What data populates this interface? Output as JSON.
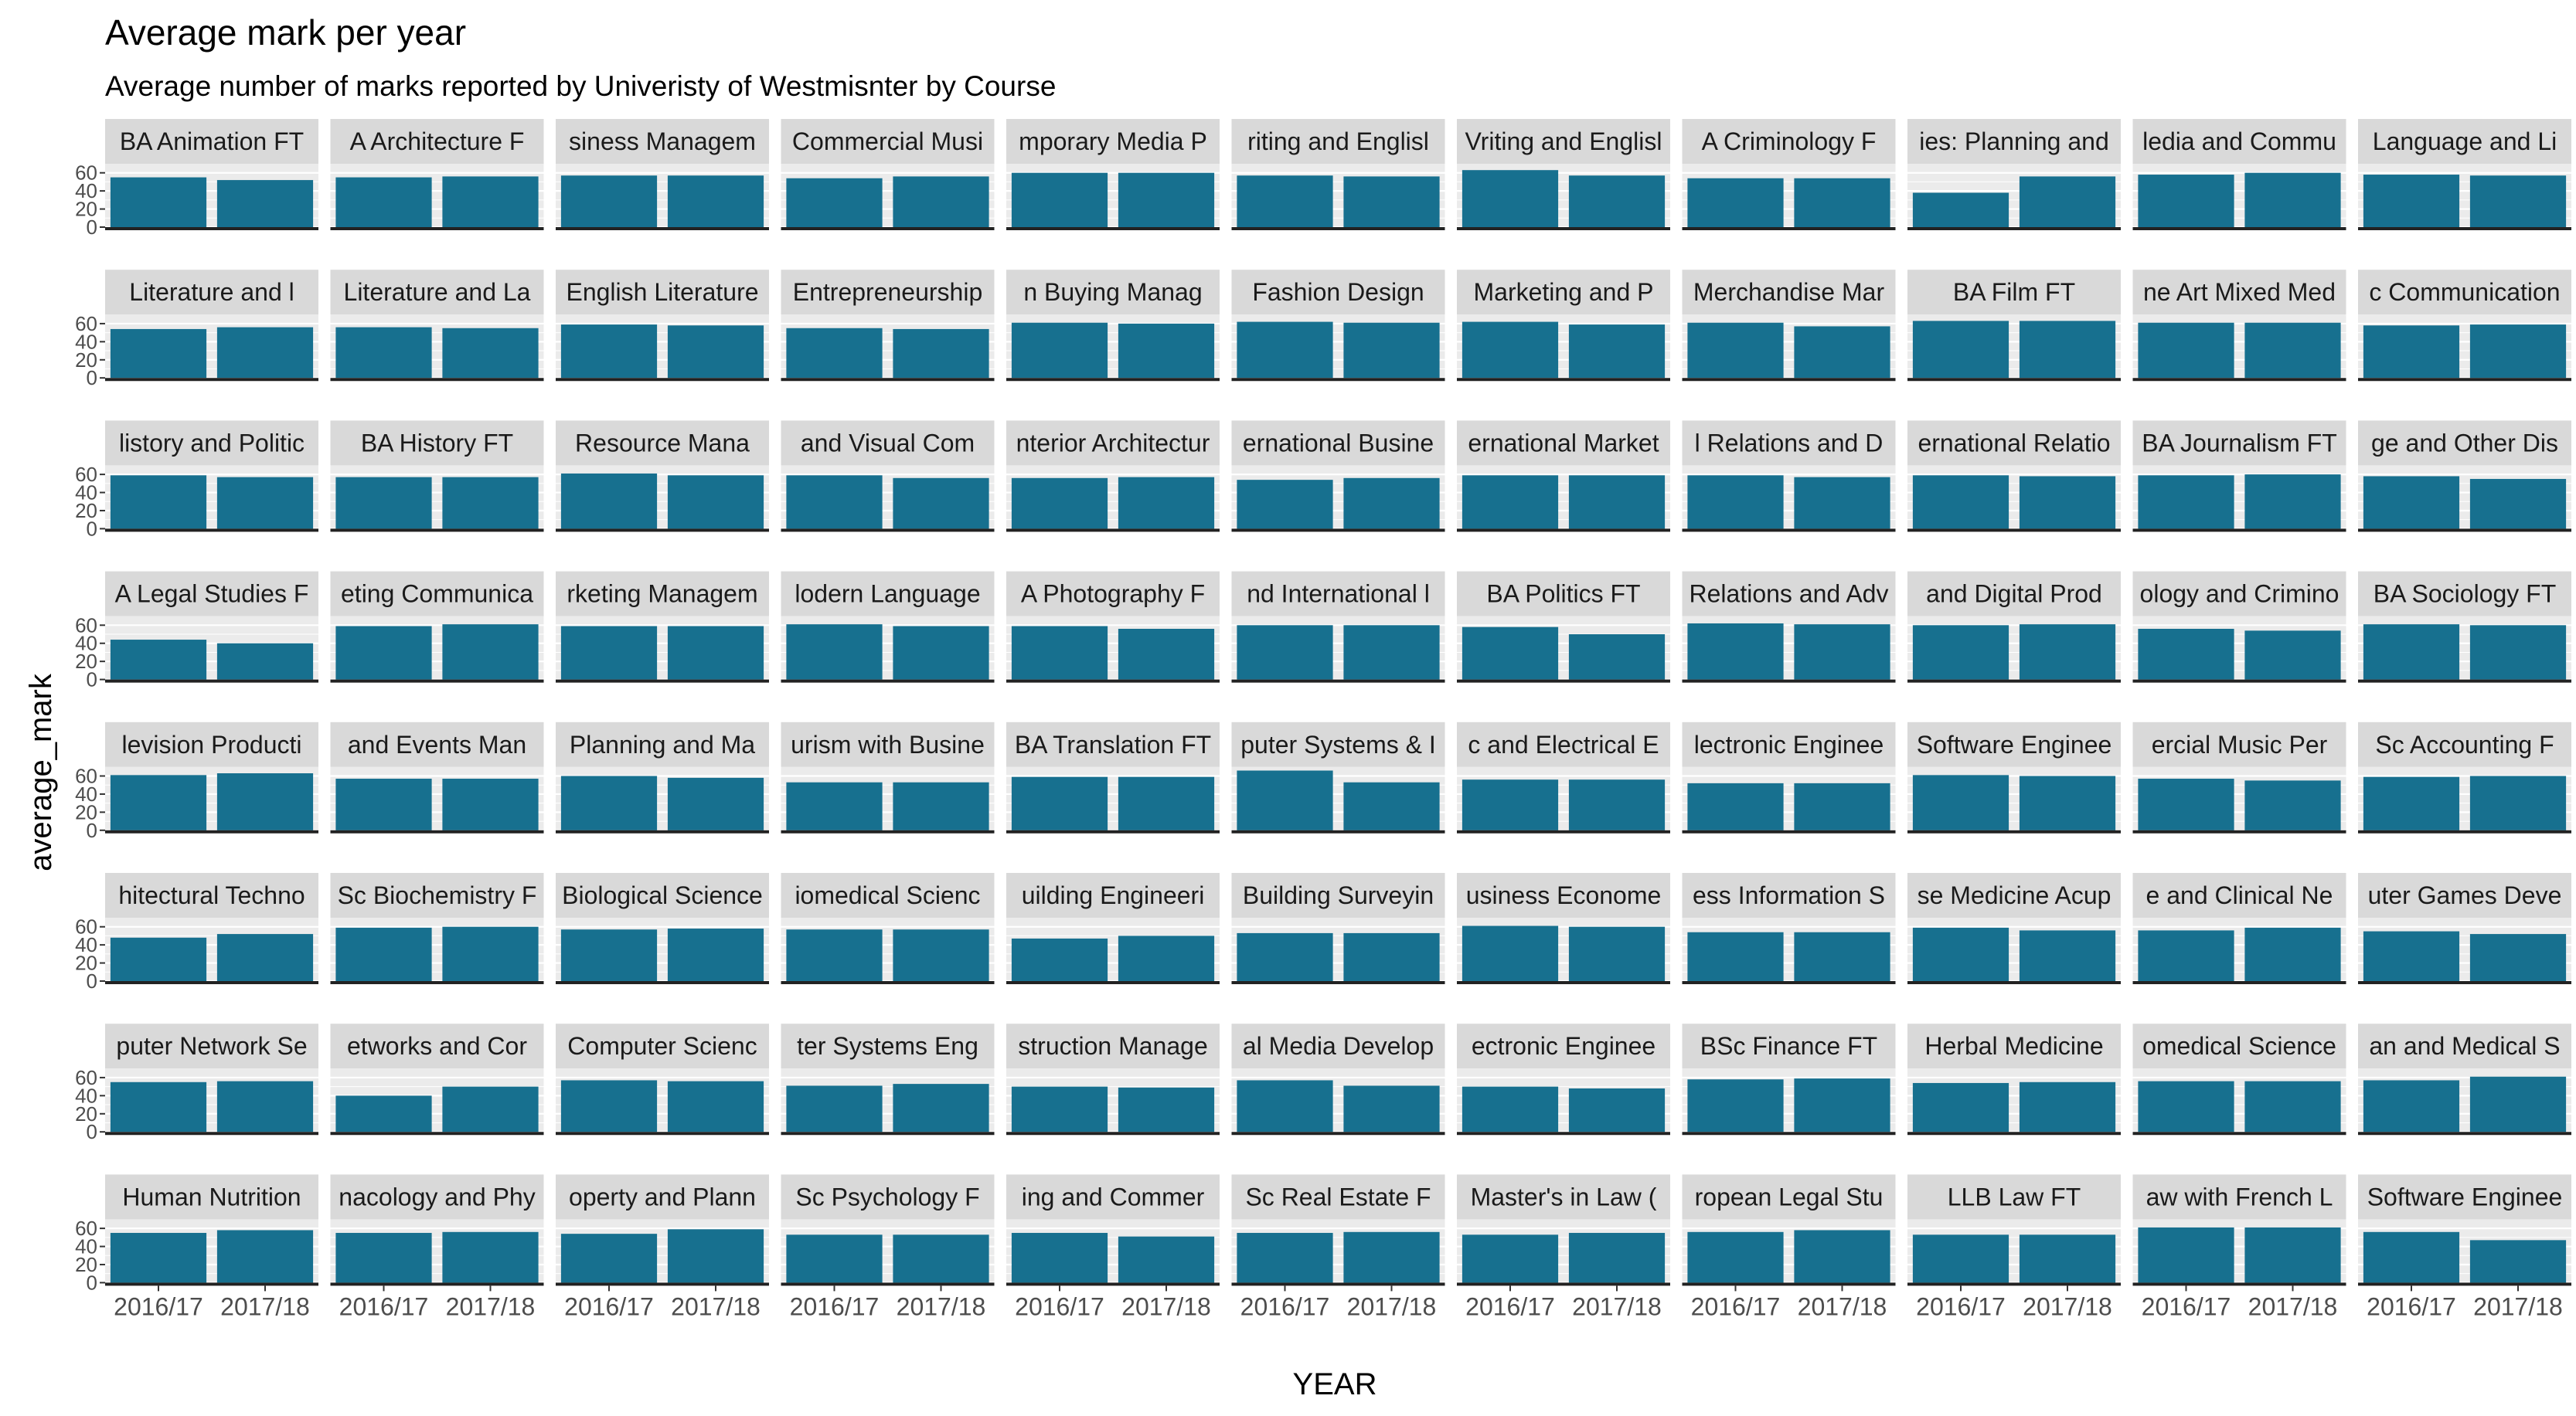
{
  "chart_data": {
    "type": "bar",
    "title": "Average mark per year",
    "subtitle": "Average number of marks reported by Univeristy of Westmisnter by Course",
    "xlabel": "YEAR",
    "ylabel": "average_mark",
    "categories": [
      "2016/17",
      "2017/18"
    ],
    "yticks": [
      0,
      20,
      40,
      60
    ],
    "ylim": [
      0,
      70
    ],
    "grid": true,
    "layout": "facet_wrap",
    "ncol": 11,
    "bar_color": "#17708f",
    "panel_bg": "#ebebeb",
    "strip_bg": "#d9d9d9",
    "panels": [
      {
        "label": "BA Animation FT",
        "values": [
          55,
          52
        ]
      },
      {
        "label": "A Architecture F",
        "values": [
          55,
          56
        ]
      },
      {
        "label": "siness Managem",
        "values": [
          57,
          57
        ]
      },
      {
        "label": "Commercial Musi",
        "values": [
          54,
          56
        ]
      },
      {
        "label": "mporary Media P",
        "values": [
          60,
          60
        ]
      },
      {
        "label": "riting and Englisl",
        "values": [
          57,
          56
        ]
      },
      {
        "label": "Vriting and Englisl",
        "values": [
          63,
          57
        ]
      },
      {
        "label": "A Criminology F",
        "values": [
          54,
          54
        ]
      },
      {
        "label": "ies: Planning and",
        "values": [
          38,
          56
        ]
      },
      {
        "label": "ledia and Commu",
        "values": [
          58,
          60
        ]
      },
      {
        "label": "Language and Li",
        "values": [
          58,
          57
        ]
      },
      {
        "label": "Literature and l",
        "values": [
          54,
          56
        ]
      },
      {
        "label": "Literature and La",
        "values": [
          56,
          55
        ]
      },
      {
        "label": "English Literature",
        "values": [
          59,
          58
        ]
      },
      {
        "label": "Entrepreneurship",
        "values": [
          55,
          54
        ]
      },
      {
        "label": "n Buying Manag",
        "values": [
          61,
          60
        ]
      },
      {
        "label": "Fashion Design",
        "values": [
          62,
          61
        ]
      },
      {
        "label": "Marketing and P",
        "values": [
          62,
          59
        ]
      },
      {
        "label": "Merchandise Mar",
        "values": [
          61,
          57
        ]
      },
      {
        "label": "BA Film FT",
        "values": [
          63,
          63
        ]
      },
      {
        "label": "ne Art Mixed Med",
        "values": [
          61,
          61
        ]
      },
      {
        "label": "c Communication",
        "values": [
          58,
          59
        ]
      },
      {
        "label": "listory and Politic",
        "values": [
          59,
          57
        ]
      },
      {
        "label": "BA History FT",
        "values": [
          57,
          57
        ]
      },
      {
        "label": "Resource Mana",
        "values": [
          61,
          59
        ]
      },
      {
        "label": "and Visual Com",
        "values": [
          59,
          56
        ]
      },
      {
        "label": "nterior Architectur",
        "values": [
          56,
          57
        ]
      },
      {
        "label": "ernational Busine",
        "values": [
          54,
          56
        ]
      },
      {
        "label": "ernational Market",
        "values": [
          59,
          59
        ]
      },
      {
        "label": "l Relations and D",
        "values": [
          59,
          57
        ]
      },
      {
        "label": "ernational Relatio",
        "values": [
          59,
          58
        ]
      },
      {
        "label": "BA Journalism FT",
        "values": [
          59,
          60
        ]
      },
      {
        "label": "ge and Other Dis",
        "values": [
          58,
          55
        ]
      },
      {
        "label": "A Legal Studies F",
        "values": [
          44,
          40
        ]
      },
      {
        "label": "eting Communica",
        "values": [
          59,
          61
        ]
      },
      {
        "label": "rketing Managem",
        "values": [
          59,
          59
        ]
      },
      {
        "label": "lodern Language",
        "values": [
          61,
          59
        ]
      },
      {
        "label": "A Photography F",
        "values": [
          59,
          56
        ]
      },
      {
        "label": "nd International l",
        "values": [
          60,
          60
        ]
      },
      {
        "label": "BA Politics FT",
        "values": [
          58,
          50
        ]
      },
      {
        "label": "Relations and Adv",
        "values": [
          62,
          61
        ]
      },
      {
        "label": "and Digital Prod",
        "values": [
          60,
          61
        ]
      },
      {
        "label": "ology and Crimino",
        "values": [
          56,
          54
        ]
      },
      {
        "label": "BA Sociology FT",
        "values": [
          61,
          60
        ]
      },
      {
        "label": "levision Producti",
        "values": [
          61,
          63
        ]
      },
      {
        "label": "and Events Man",
        "values": [
          57,
          57
        ]
      },
      {
        "label": "Planning and Ma",
        "values": [
          60,
          58
        ]
      },
      {
        "label": "urism with Busine",
        "values": [
          53,
          53
        ]
      },
      {
        "label": "BA Translation FT",
        "values": [
          59,
          59
        ]
      },
      {
        "label": "puter Systems & I",
        "values": [
          66,
          53
        ]
      },
      {
        "label": "c and Electrical E",
        "values": [
          56,
          56
        ]
      },
      {
        "label": "lectronic Enginee",
        "values": [
          52,
          52
        ]
      },
      {
        "label": "Software Enginee",
        "values": [
          61,
          60
        ]
      },
      {
        "label": "ercial Music Per",
        "values": [
          57,
          55
        ]
      },
      {
        "label": "Sc Accounting F",
        "values": [
          59,
          60
        ]
      },
      {
        "label": "hitectural Techno",
        "values": [
          48,
          52
        ]
      },
      {
        "label": "Sc Biochemistry F",
        "values": [
          59,
          60
        ]
      },
      {
        "label": "Biological Science",
        "values": [
          57,
          58
        ]
      },
      {
        "label": "iomedical Scienc",
        "values": [
          57,
          57
        ]
      },
      {
        "label": "uilding Engineeri",
        "values": [
          47,
          50
        ]
      },
      {
        "label": "Building Surveyin",
        "values": [
          53,
          53
        ]
      },
      {
        "label": "usiness Econome",
        "values": [
          61,
          60
        ]
      },
      {
        "label": "ess Information S",
        "values": [
          54,
          54
        ]
      },
      {
        "label": "se Medicine Acup",
        "values": [
          59,
          56
        ]
      },
      {
        "label": "e and Clinical Ne",
        "values": [
          56,
          59
        ]
      },
      {
        "label": "uter Games Deve",
        "values": [
          55,
          52
        ]
      },
      {
        "label": "puter Network Se",
        "values": [
          55,
          56
        ]
      },
      {
        "label": "etworks and Cor",
        "values": [
          40,
          50
        ]
      },
      {
        "label": "Computer Scienc",
        "values": [
          57,
          56
        ]
      },
      {
        "label": "ter Systems Eng",
        "values": [
          51,
          53
        ]
      },
      {
        "label": "struction Manage",
        "values": [
          50,
          49
        ]
      },
      {
        "label": "al Media Develop",
        "values": [
          57,
          51
        ]
      },
      {
        "label": "ectronic Enginee",
        "values": [
          50,
          48
        ]
      },
      {
        "label": "BSc Finance FT",
        "values": [
          58,
          59
        ]
      },
      {
        "label": "Herbal Medicine",
        "values": [
          54,
          55
        ]
      },
      {
        "label": "omedical Science",
        "values": [
          56,
          56
        ]
      },
      {
        "label": "an and Medical S",
        "values": [
          57,
          61
        ]
      },
      {
        "label": "Human Nutrition",
        "values": [
          55,
          58
        ]
      },
      {
        "label": "nacology and Phy",
        "values": [
          55,
          56
        ]
      },
      {
        "label": "operty and Plann",
        "values": [
          54,
          59
        ]
      },
      {
        "label": "Sc Psychology F",
        "values": [
          53,
          53
        ]
      },
      {
        "label": "ing and Commer",
        "values": [
          55,
          51
        ]
      },
      {
        "label": "Sc Real Estate F",
        "values": [
          55,
          56
        ]
      },
      {
        "label": "Master's in Law (",
        "values": [
          53,
          55
        ]
      },
      {
        "label": "ropean Legal Stu",
        "values": [
          56,
          58
        ]
      },
      {
        "label": "LLB Law FT",
        "values": [
          53,
          53
        ]
      },
      {
        "label": "aw with French L",
        "values": [
          61,
          61
        ]
      },
      {
        "label": "Software Enginee",
        "values": [
          56,
          47
        ]
      }
    ]
  }
}
